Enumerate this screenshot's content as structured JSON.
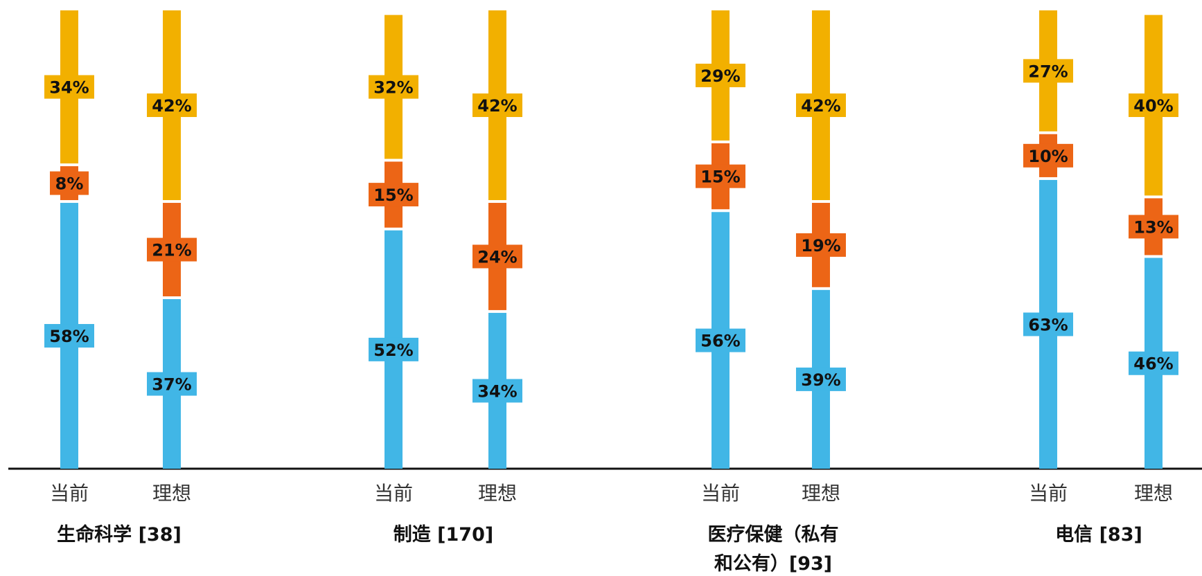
{
  "chart_data": {
    "type": "bar",
    "stacked": true,
    "orientation": "vertical",
    "ylim": [
      0,
      100
    ],
    "grid": false,
    "legend": "none",
    "series_colors": [
      "#41b6e6",
      "#ec6516",
      "#f2b000"
    ],
    "groups": [
      {
        "title_lines": [
          "生命科学 [38]"
        ],
        "bars": [
          {
            "label": "当前",
            "values": [
              58,
              8,
              34
            ]
          },
          {
            "label": "理想",
            "values": [
              37,
              21,
              42
            ]
          }
        ]
      },
      {
        "title_lines": [
          "制造 [170]"
        ],
        "bars": [
          {
            "label": "当前",
            "values": [
              52,
              15,
              32
            ]
          },
          {
            "label": "理想",
            "values": [
              34,
              24,
              42
            ]
          }
        ]
      },
      {
        "title_lines": [
          "医疗保健（私有",
          "和公有）[93]"
        ],
        "bars": [
          {
            "label": "当前",
            "values": [
              56,
              15,
              29
            ]
          },
          {
            "label": "理想",
            "values": [
              39,
              19,
              42
            ]
          }
        ]
      },
      {
        "title_lines": [
          "电信 [83]"
        ],
        "bars": [
          {
            "label": "当前",
            "values": [
              63,
              10,
              27
            ]
          },
          {
            "label": "理想",
            "values": [
              46,
              13,
              40
            ]
          }
        ]
      }
    ]
  }
}
